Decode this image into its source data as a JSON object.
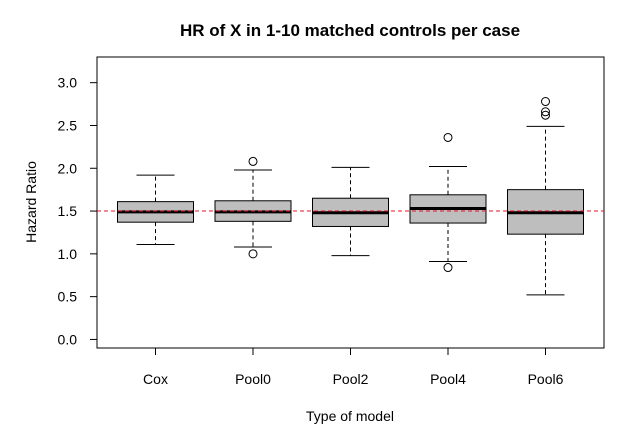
{
  "chart_data": {
    "type": "boxplot",
    "title": "HR of X in 1-10 matched controls per case",
    "xlabel": "Type of model",
    "ylabel": "Hazard Ratio",
    "ylim": [
      -0.1,
      3.3
    ],
    "yticks": [
      "0.0",
      "0.5",
      "1.0",
      "1.5",
      "2.0",
      "2.5",
      "3.0"
    ],
    "reference_line": {
      "y": 1.5,
      "color": "#e8132a",
      "style": "dashed"
    },
    "box_fill": "#bebebe",
    "categories": [
      "Cox",
      "Pool0",
      "Pool2",
      "Pool4",
      "Pool6"
    ],
    "boxes": [
      {
        "category": "Cox",
        "whisker_low": 1.11,
        "q1": 1.37,
        "median": 1.49,
        "q3": 1.61,
        "whisker_high": 1.92,
        "outliers": []
      },
      {
        "category": "Pool0",
        "whisker_low": 1.08,
        "q1": 1.38,
        "median": 1.49,
        "q3": 1.62,
        "whisker_high": 1.98,
        "outliers": [
          2.08,
          1.0
        ]
      },
      {
        "category": "Pool2",
        "whisker_low": 0.98,
        "q1": 1.32,
        "median": 1.48,
        "q3": 1.65,
        "whisker_high": 2.01,
        "outliers": []
      },
      {
        "category": "Pool4",
        "whisker_low": 0.91,
        "q1": 1.36,
        "median": 1.53,
        "q3": 1.69,
        "whisker_high": 2.02,
        "outliers": [
          2.36,
          0.84
        ]
      },
      {
        "category": "Pool6",
        "whisker_low": 0.52,
        "q1": 1.23,
        "median": 1.48,
        "q3": 1.75,
        "whisker_high": 2.49,
        "outliers": [
          2.78,
          2.66,
          2.62
        ]
      }
    ]
  }
}
